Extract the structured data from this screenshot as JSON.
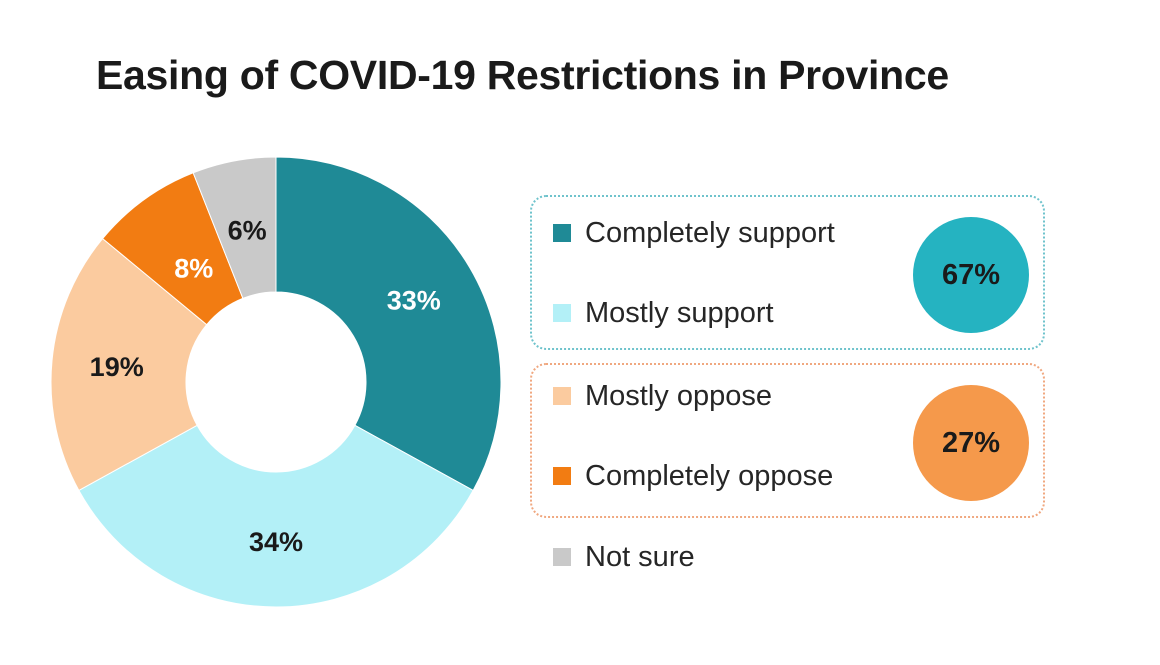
{
  "title": "Easing of COVID-19 Restrictions in Province",
  "chart_data": {
    "type": "pie",
    "variant": "donut",
    "title": "Easing of COVID-19 Restrictions in Province",
    "slices": [
      {
        "name": "Completely support",
        "value": 33,
        "label": "33%",
        "color": "#1f8a96",
        "label_color": "#ffffff"
      },
      {
        "name": "Mostly support",
        "value": 34,
        "label": "34%",
        "color": "#b3f0f7",
        "label_color": "#1a1a1a"
      },
      {
        "name": "Mostly oppose",
        "value": 19,
        "label": "19%",
        "color": "#fbcb9f",
        "label_color": "#1a1a1a"
      },
      {
        "name": "Completely oppose",
        "value": 8,
        "label": "8%",
        "color": "#f27c12",
        "label_color": "#ffffff"
      },
      {
        "name": "Not sure",
        "value": 6,
        "label": "6%",
        "color": "#c9c9c9",
        "label_color": "#1a1a1a"
      }
    ],
    "legend": {
      "placement": "right",
      "items": [
        {
          "label": "Completely support",
          "color": "#1f8a96"
        },
        {
          "label": "Mostly support",
          "color": "#b3f0f7"
        },
        {
          "label": "Mostly oppose",
          "color": "#fbcb9f"
        },
        {
          "label": "Completely oppose",
          "color": "#f27c12"
        },
        {
          "label": "Not sure",
          "color": "#c9c9c9"
        }
      ]
    },
    "groups": [
      {
        "members": [
          "Completely support",
          "Mostly support"
        ],
        "total": 67,
        "label": "67%",
        "color": "#25b3c1",
        "border_color": "#6fc3cc"
      },
      {
        "members": [
          "Mostly oppose",
          "Completely oppose"
        ],
        "total": 27,
        "label": "27%",
        "color": "#f5994b",
        "border_color": "#f0a880"
      }
    ]
  }
}
